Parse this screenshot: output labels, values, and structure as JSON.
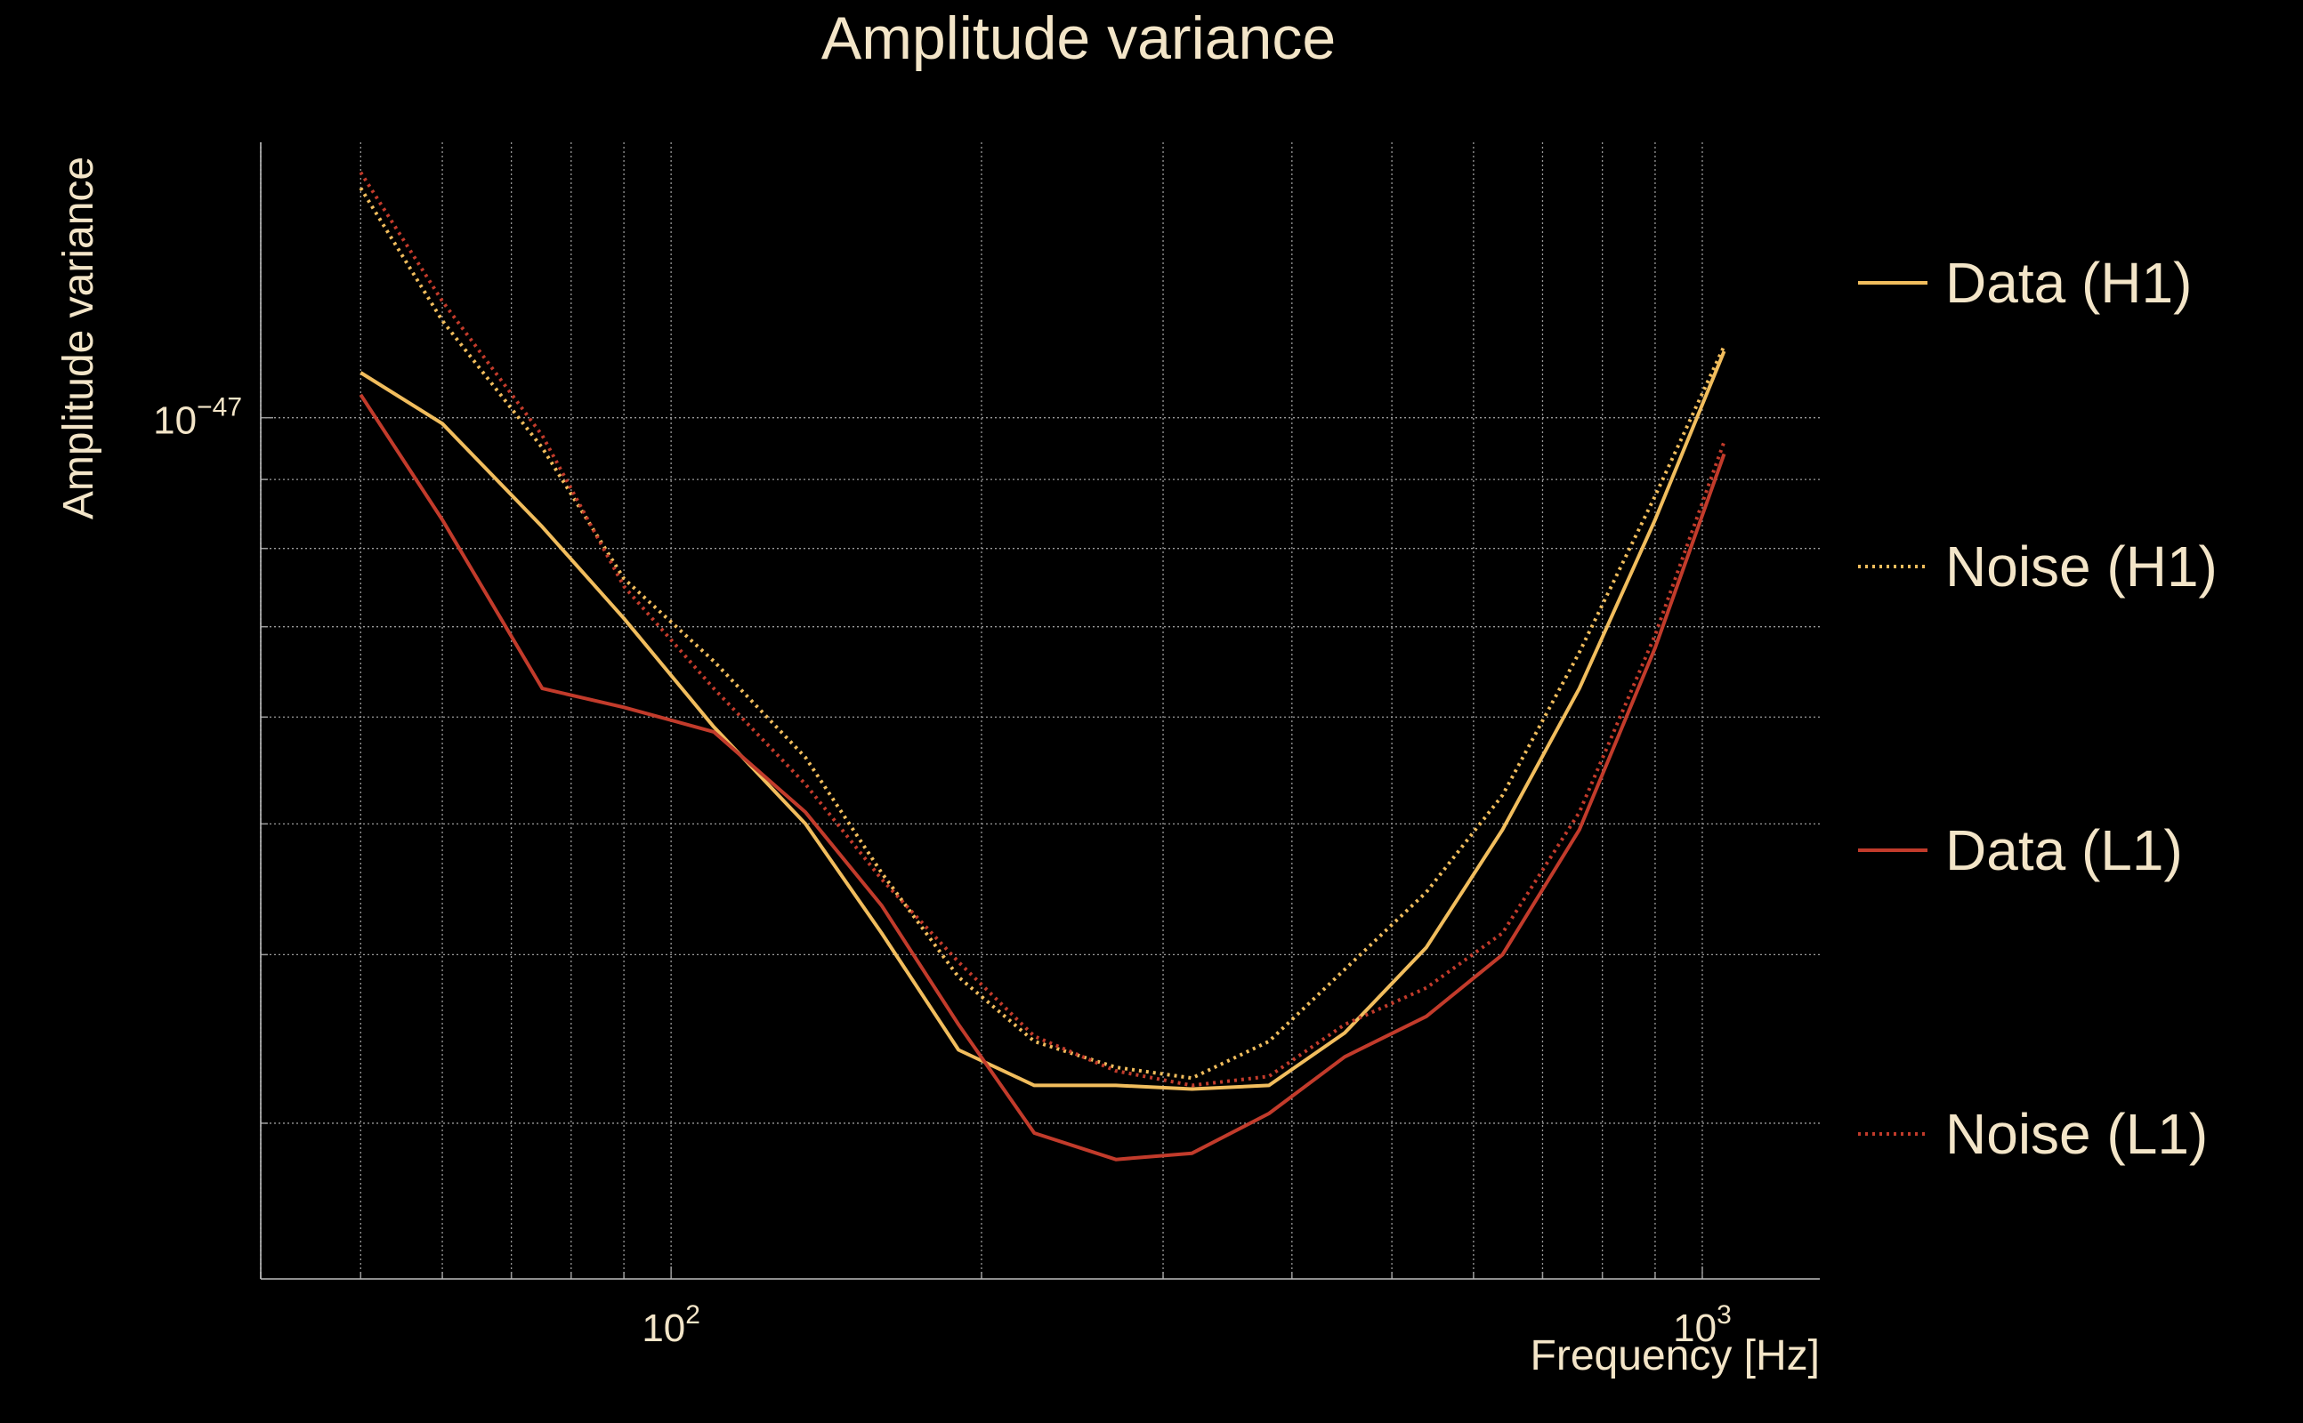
{
  "chart_data": {
    "type": "line",
    "title": "Amplitude variance",
    "xlabel": "Frequency [Hz]",
    "ylabel": "Amplitude variance",
    "xscale": "log",
    "yscale": "log",
    "xlim": [
      40,
      1300
    ],
    "ylim": [
      2.3e-48,
      1.6e-47
    ],
    "x_ticks": [
      {
        "value": 100,
        "base": "10",
        "exp": "2"
      },
      {
        "value": 1000,
        "base": "10",
        "exp": "3"
      }
    ],
    "y_ticks": [
      {
        "value": 1e-47,
        "base": "10",
        "exp": "−47"
      }
    ],
    "grid": true,
    "legend_position": "right",
    "x": [
      50,
      60,
      75,
      90,
      110,
      135,
      160,
      190,
      225,
      270,
      320,
      380,
      450,
      540,
      640,
      760,
      900,
      1050
    ],
    "series": [
      {
        "name": "Data (H1)",
        "color": "#f1bd5d",
        "style": "solid",
        "values": [
          1.08e-47,
          9.9e-48,
          8.3e-48,
          7.1e-48,
          5.9e-48,
          5e-48,
          4.15e-48,
          3.4e-48,
          3.2e-48,
          3.2e-48,
          3.18e-48,
          3.2e-48,
          3.5e-48,
          4.05e-48,
          4.95e-48,
          6.3e-48,
          8.4e-48,
          1.12e-47
        ]
      },
      {
        "name": "Noise (H1)",
        "color": "#f1bd5d",
        "style": "dotted",
        "values": [
          1.48e-47,
          1.18e-47,
          9.5e-48,
          7.6e-48,
          6.6e-48,
          5.6e-48,
          4.6e-48,
          3.85e-48,
          3.45e-48,
          3.3e-48,
          3.24e-48,
          3.45e-48,
          3.9e-48,
          4.45e-48,
          5.25e-48,
          6.7e-48,
          8.75e-48,
          1.13e-47
        ]
      },
      {
        "name": "Data (L1)",
        "color": "#c23b2b",
        "style": "solid",
        "values": [
          1.04e-47,
          8.4e-48,
          6.3e-48,
          6.1e-48,
          5.85e-48,
          5.1e-48,
          4.35e-48,
          3.55e-48,
          2.95e-48,
          2.82e-48,
          2.85e-48,
          3.05e-48,
          3.36e-48,
          3.6e-48,
          4e-48,
          4.95e-48,
          6.75e-48,
          9.4e-48
        ]
      },
      {
        "name": "Noise (L1)",
        "color": "#c23b2b",
        "style": "dotted",
        "values": [
          1.52e-47,
          1.22e-47,
          9.7e-48,
          7.5e-48,
          6.3e-48,
          5.35e-48,
          4.55e-48,
          3.95e-48,
          3.48e-48,
          3.28e-48,
          3.2e-48,
          3.25e-48,
          3.55e-48,
          3.78e-48,
          4.15e-48,
          5.1e-48,
          6.9e-48,
          9.6e-48
        ]
      }
    ]
  }
}
